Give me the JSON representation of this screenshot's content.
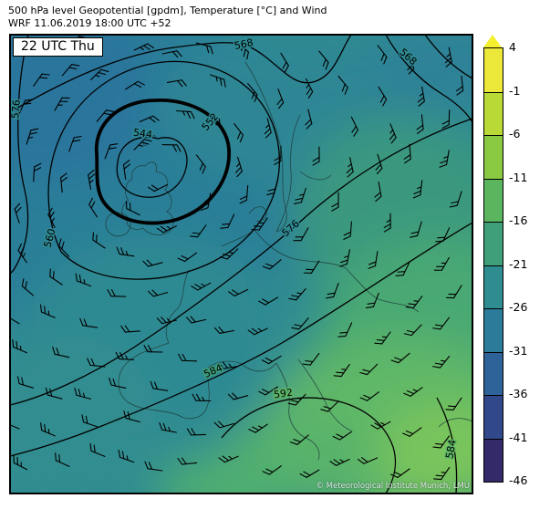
{
  "header": {
    "title_line1": "500 hPa level Geopotential [gpdm], Temperature [°C] and Wind",
    "title_line2": "WRF 11.06.2019 18:00 UTC +52"
  },
  "map": {
    "timestamp_label": "22 UTC Thu",
    "attribution": "© Meteorological Institute Munich, LMU",
    "contour_labels": [
      {
        "text": "576"
      },
      {
        "text": "568"
      },
      {
        "text": "568"
      },
      {
        "text": "552"
      },
      {
        "text": "544"
      },
      {
        "text": "560"
      },
      {
        "text": "576"
      },
      {
        "text": "584"
      },
      {
        "text": "592"
      },
      {
        "text": "584"
      }
    ]
  },
  "colorbar": {
    "ticks": [
      "4",
      "-1",
      "-6",
      "-11",
      "-16",
      "-21",
      "-26",
      "-31",
      "-36",
      "-41",
      "-46"
    ],
    "segments": [
      "#ece83a",
      "#b8d936",
      "#8aca43",
      "#5bb55e",
      "#3f9f7a",
      "#2f8d92",
      "#2d7b9b",
      "#2d6399",
      "#31488b",
      "#342a69"
    ],
    "arrow_color": "#f4f02e"
  }
}
